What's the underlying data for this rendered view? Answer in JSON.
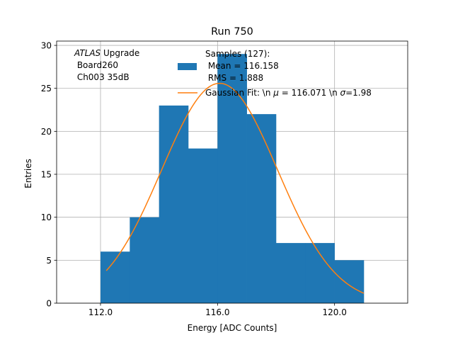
{
  "chart_data": {
    "type": "bar",
    "title": "Run 750",
    "xlabel": "Energy [ADC Counts]",
    "ylabel": "Entries",
    "xlim": [
      110.5,
      122.5
    ],
    "ylim": [
      0,
      30.5
    ],
    "xticks": [
      112.0,
      116.0,
      120.0
    ],
    "xtick_labels": [
      "112.0",
      "116.0",
      "120.0"
    ],
    "yticks": [
      0,
      5,
      10,
      15,
      20,
      25,
      30
    ],
    "ytick_labels": [
      "0",
      "5",
      "10",
      "15",
      "20",
      "25",
      "30"
    ],
    "grid": true,
    "annotation": {
      "line1_italic": "ATLAS",
      "line1_rest": " Upgrade",
      "line2": " Board260",
      "line3": " Ch003 35dB"
    },
    "histogram": {
      "bin_edges": [
        112,
        113,
        114,
        115,
        116,
        117,
        118,
        119,
        120,
        121
      ],
      "counts": [
        6,
        10,
        23,
        18,
        29,
        22,
        7,
        7,
        5
      ],
      "color": "#1f77b4",
      "legend_lines": [
        "Samples (127):",
        " Mean = 116.158",
        " RMS = 1.888"
      ]
    },
    "fit": {
      "mu": 116.071,
      "sigma": 1.98,
      "x_range": [
        112.2,
        121.0
      ],
      "color": "#ff7f0e",
      "legend_label": "Gaussian Fit: \\n $\\mu$ = 116.071 \\n $\\sigma$=1.98",
      "legend_parts": [
        "Gaussian Fit: \\n ",
        "μ",
        " = 116.071 \\n ",
        "σ",
        "=1.98"
      ]
    },
    "legend_position": "upper right"
  }
}
